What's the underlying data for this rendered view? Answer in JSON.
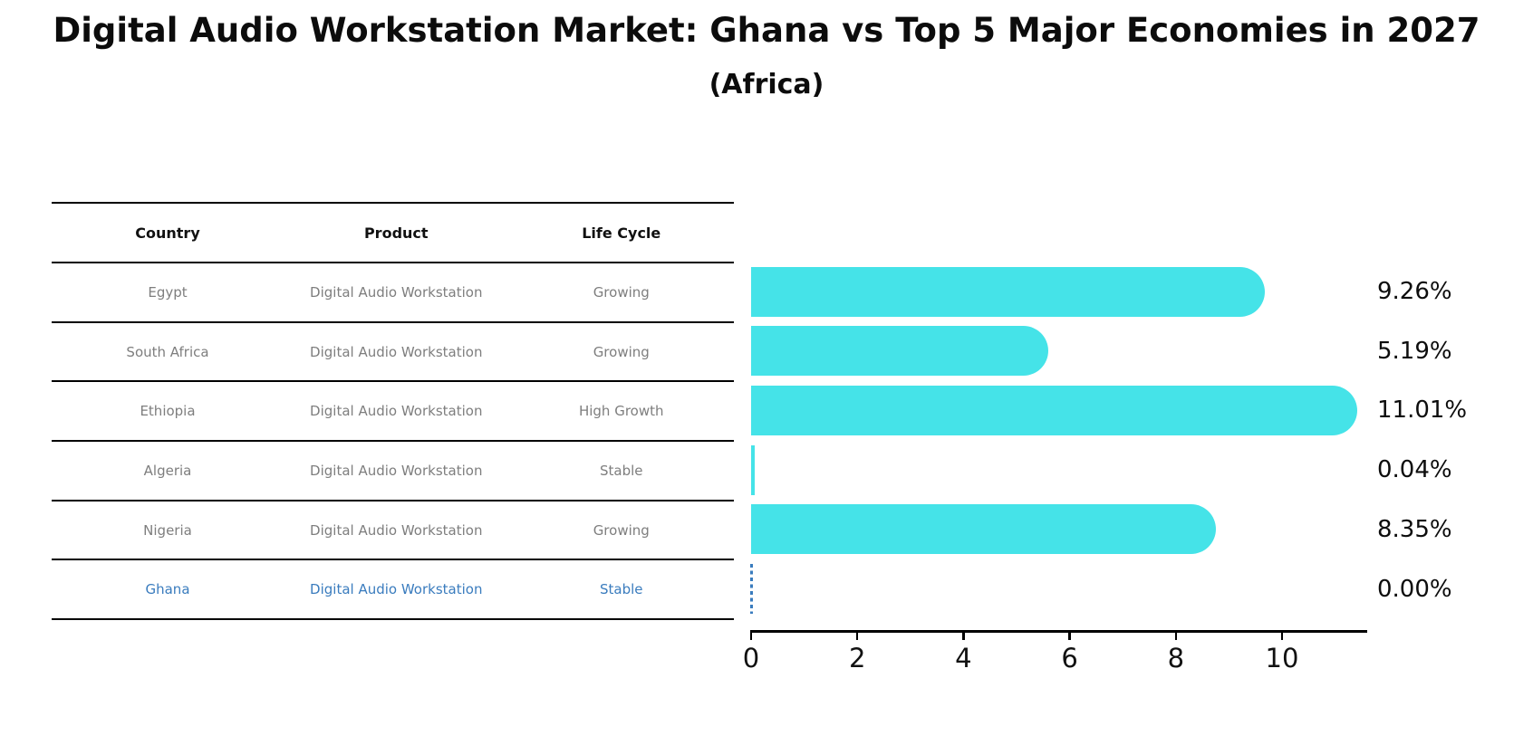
{
  "chart_data": {
    "type": "bar",
    "orientation": "horizontal",
    "title": "Digital Audio Workstation Market: Ghana vs Top 5 Major Economies in 2027",
    "subtitle": "(Africa)",
    "categories": [
      "Egypt",
      "South Africa",
      "Ethiopia",
      "Algeria",
      "Nigeria",
      "Ghana"
    ],
    "values": [
      9.26,
      5.19,
      11.01,
      0.04,
      8.35,
      0.0
    ],
    "value_labels": [
      "9.26%",
      "5.19%",
      "11.01%",
      "0.04%",
      "8.35%",
      "0.00%"
    ],
    "xlabel": "",
    "ylabel": "",
    "x_ticks": [
      0,
      2,
      4,
      6,
      8,
      10
    ],
    "xlim": [
      0,
      11.55
    ],
    "grid": false,
    "legend": "none",
    "highlight_category": "Ghana",
    "colors": {
      "bar": "#45e3e8",
      "highlight": "#3a7cbe",
      "row_text": "#7e7e7e",
      "header_text": "#111111",
      "axis": "#000000",
      "value_label": "#0d0d0d",
      "background": "#ffffff"
    },
    "table": {
      "headers": [
        "Country",
        "Product",
        "Life Cycle"
      ],
      "rows": [
        {
          "country": "Egypt",
          "product": "Digital Audio Workstation",
          "life_cycle": "Growing",
          "highlighted": false
        },
        {
          "country": "South Africa",
          "product": "Digital Audio Workstation",
          "life_cycle": "Growing",
          "highlighted": false
        },
        {
          "country": "Ethiopia",
          "product": "Digital Audio Workstation",
          "life_cycle": "High Growth",
          "highlighted": false
        },
        {
          "country": "Algeria",
          "product": "Digital Audio Workstation",
          "life_cycle": "Stable",
          "highlighted": false
        },
        {
          "country": "Nigeria",
          "product": "Digital Audio Workstation",
          "life_cycle": "Growing",
          "highlighted": false
        },
        {
          "country": "Ghana",
          "product": "Digital Audio Workstation",
          "life_cycle": "Stable",
          "highlighted": true
        }
      ]
    }
  }
}
